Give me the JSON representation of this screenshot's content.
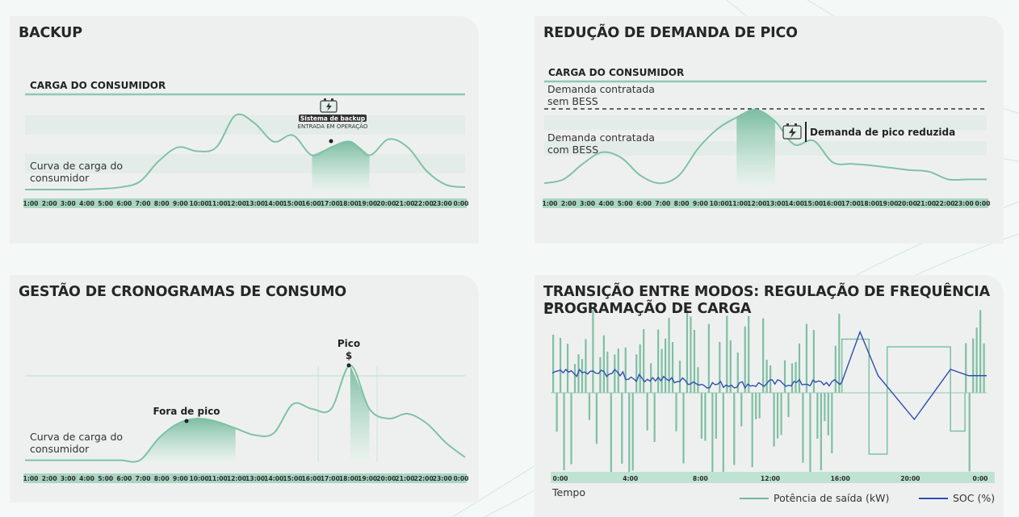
{
  "time_ticks": [
    "1:00",
    "2:00",
    "3:00",
    "4:00",
    "5:00",
    "6:00",
    "7:00",
    "8:00",
    "9:00",
    "10:00",
    "11:00",
    "12:00",
    "13:00",
    "14:00",
    "15:00",
    "16:00",
    "17:00",
    "18:00",
    "19:00",
    "20:00",
    "21:00",
    "22:00",
    "23:00",
    "0:00"
  ],
  "colors": {
    "accent": "#6fb89a",
    "band": "#e3ece8",
    "line": "#2f4fb0",
    "tick_bar": "#a9d6c1"
  },
  "backup": {
    "title": "BACKUP",
    "load_label": "CARGA DO CONSUMIDOR",
    "curve_label_1": "Curva de carga do",
    "curve_label_2": "consumidor",
    "system_label": "Sistema de backup",
    "system_sub": "ENTRADA EM OPERAÇÃO",
    "icon": "battery-charge-icon",
    "chart_data": {
      "type": "area",
      "title": "BACKUP",
      "x": [
        "1:00",
        "2:00",
        "3:00",
        "4:00",
        "5:00",
        "6:00",
        "7:00",
        "8:00",
        "9:00",
        "10:00",
        "11:00",
        "12:00",
        "13:00",
        "14:00",
        "15:00",
        "16:00",
        "17:00",
        "18:00",
        "19:00",
        "20:00",
        "21:00",
        "22:00",
        "23:00",
        "0:00"
      ],
      "values": [
        0.02,
        0.02,
        0.02,
        0.02,
        0.03,
        0.05,
        0.12,
        0.38,
        0.55,
        0.5,
        0.55,
        0.95,
        0.85,
        0.62,
        0.7,
        0.45,
        0.55,
        0.62,
        0.45,
        0.65,
        0.55,
        0.25,
        0.08,
        0.05
      ],
      "highlight_range": [
        "16:00",
        "19:00"
      ],
      "ylim": [
        0,
        1
      ]
    }
  },
  "peak": {
    "title": "REDUÇÃO DE DEMANDA DE PICO",
    "load_label": "CARGA DO CONSUMIDOR",
    "without_bess_1": "Demanda contratada",
    "without_bess_2": "sem BESS",
    "with_bess_1": "Demanda contratada",
    "with_bess_2": "com BESS",
    "reduced_label": "Demanda de pico reduzida",
    "icon": "battery-charge-icon",
    "chart_data": {
      "type": "area",
      "title": "REDUÇÃO DE DEMANDA DE PICO",
      "x": [
        "1:00",
        "2:00",
        "3:00",
        "4:00",
        "5:00",
        "6:00",
        "7:00",
        "8:00",
        "9:00",
        "10:00",
        "11:00",
        "12:00",
        "13:00",
        "14:00",
        "15:00",
        "16:00",
        "17:00",
        "18:00",
        "19:00",
        "20:00",
        "21:00",
        "22:00",
        "23:00",
        "0:00"
      ],
      "values": [
        0.05,
        0.1,
        0.3,
        0.45,
        0.38,
        0.15,
        0.05,
        0.15,
        0.5,
        0.75,
        0.9,
        1.0,
        0.85,
        0.55,
        0.6,
        0.32,
        0.3,
        0.28,
        0.25,
        0.22,
        0.2,
        0.1,
        0.1,
        0.1
      ],
      "highlight_range": [
        "11:00",
        "13:00"
      ],
      "ylim": [
        0,
        1
      ]
    }
  },
  "schedule": {
    "title": "GESTÃO DE CRONOGRAMAS DE CONSUMO",
    "curve_label_1": "Curva de carga do",
    "curve_label_2": "consumidor",
    "offpeak_label": "Fora de pico",
    "peak_label": "Pico",
    "peak_symbol": "$",
    "chart_data": {
      "type": "area",
      "title": "GESTÃO DE CRONOGRAMAS DE CONSUMO",
      "x": [
        "1:00",
        "2:00",
        "3:00",
        "4:00",
        "5:00",
        "6:00",
        "7:00",
        "8:00",
        "9:00",
        "10:00",
        "11:00",
        "12:00",
        "13:00",
        "14:00",
        "15:00",
        "16:00",
        "17:00",
        "18:00",
        "19:00",
        "20:00",
        "21:00",
        "22:00",
        "23:00",
        "0:00"
      ],
      "values": [
        0.02,
        0.02,
        0.02,
        0.02,
        0.02,
        0.02,
        0.02,
        0.25,
        0.4,
        0.45,
        0.42,
        0.35,
        0.28,
        0.3,
        0.6,
        0.55,
        0.55,
        1.0,
        0.55,
        0.45,
        0.5,
        0.4,
        0.2,
        0.05
      ],
      "highlight_ranges": [
        [
          "7:00",
          "12:00"
        ],
        [
          "18:00",
          "19:00"
        ]
      ],
      "ylim": [
        0,
        1
      ]
    }
  },
  "transition": {
    "title_1": "TRANSIÇÃO ENTRE MODOS: REGULAÇÃO DE FREQUÊNCIA E",
    "title_2": "PROGRAMAÇÃO DE CARGA",
    "x_ticks": [
      "0:00",
      "4:00",
      "8:00",
      "12:00",
      "16:00",
      "20:00",
      "0:00"
    ],
    "xlabel": "Tempo",
    "legend_power": "Potência de saída (kW)",
    "legend_soc": "SOC (%)",
    "chart_data": {
      "type": "line",
      "title": "TRANSIÇÃO ENTRE MODOS: REGULAÇÃO DE FREQUÊNCIA E PROGRAMAÇÃO DE CARGA",
      "xlabel": "Tempo",
      "x": [
        0,
        4,
        8,
        12,
        16,
        17,
        18,
        20,
        22,
        23,
        24
      ],
      "series": [
        {
          "name": "SOC (%)",
          "values": [
            55,
            58,
            50,
            48,
            50,
            90,
            55,
            20,
            60,
            55,
            55
          ]
        },
        {
          "name": "Potência de saída (kW)",
          "values": [
            0,
            0,
            0,
            0,
            0,
            -80,
            60,
            60,
            -60,
            0,
            0
          ]
        }
      ],
      "xlim": [
        0,
        24
      ],
      "ylim": [
        -100,
        100
      ]
    }
  }
}
